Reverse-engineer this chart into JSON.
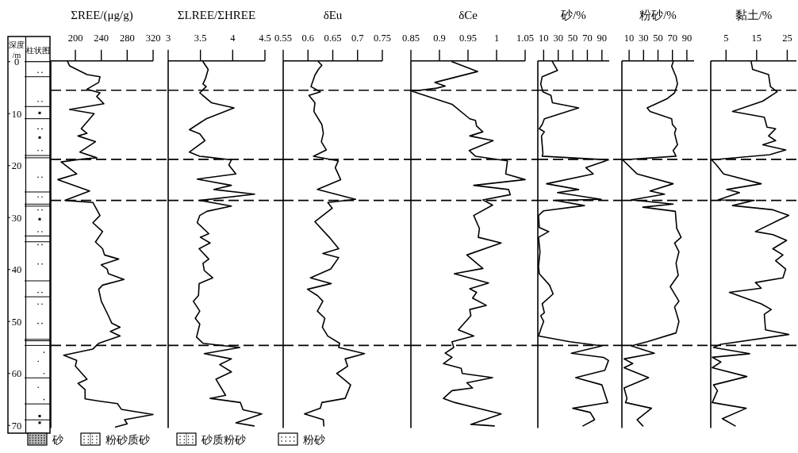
{
  "chart_data": [
    {
      "type": "line",
      "orientation": "horizontal",
      "title": "ΣREE/(μg/g)",
      "ylabel": "深度/m",
      "annotations": [
        "柱状图",
        "砂",
        "粉砂质砂",
        "砂质粉砂",
        "粉砂"
      ],
      "xlim": [
        162,
        320
      ],
      "xticks": [
        200,
        240,
        280,
        320
      ],
      "ylim": [
        70.5,
        0
      ],
      "yticks": [
        0,
        10,
        20,
        30,
        40,
        50,
        60,
        70
      ],
      "x": [
        0,
        0.8,
        2.5,
        2.9,
        4.0,
        5.3,
        6.0,
        6.7,
        8.1,
        9.2,
        10.0,
        12.9,
        13.8,
        14.3,
        15.4,
        17.4,
        18.5,
        18.7,
        19.3,
        21.6,
        22.7,
        24.9,
        26.7,
        27.1,
        29.6,
        31.0,
        32.7,
        34.7,
        36.0,
        37.2,
        38.0,
        39.1,
        39.9,
        40.8,
        41.9,
        43.0,
        43.8,
        46.1,
        48.9,
        50.3,
        51.1,
        51.9,
        52.8,
        54.2,
        55.3,
        56.5,
        57.5,
        58.6,
        61.1,
        61.9,
        63.1,
        64.9,
        65.3,
        65.8,
        66.9,
        67.9,
        68.9,
        69.7,
        70.3
      ],
      "series": [
        {
          "color": "#000000",
          "values": [
            188,
            191,
            218,
            238,
            236,
            218,
            238,
            233,
            244,
            191,
            229,
            209,
            218,
            204,
            231,
            207,
            233,
            213,
            178,
            202,
            173,
            222,
            184,
            227,
            238,
            227,
            242,
            231,
            242,
            245,
            267,
            240,
            249,
            251,
            275,
            242,
            236,
            240,
            251,
            256,
            269,
            254,
            269,
            236,
            227,
            182,
            202,
            200,
            218,
            204,
            215,
            215,
            236,
            265,
            271,
            320,
            276,
            280,
            262
          ]
        }
      ],
      "ref_lines": [
        {
          "axis": "y",
          "value": 5.5,
          "line_style": "dashed"
        },
        {
          "axis": "y",
          "value": 18.8,
          "line_style": "dashed"
        },
        {
          "axis": "y",
          "value": 26.7,
          "line_style": "dashed"
        },
        {
          "axis": "y",
          "value": 54.6,
          "line_style": "dashed"
        }
      ]
    },
    {
      "type": "line",
      "orientation": "horizontal",
      "title": "ΣLREE/ΣHREE",
      "xlim": [
        3,
        4.5
      ],
      "xticks": [
        3,
        3.5,
        4,
        4.5
      ],
      "ylim": [
        70.5,
        0
      ],
      "yticks": [
        0,
        10,
        20,
        30,
        40,
        50,
        60,
        70
      ],
      "tick_labels": "x",
      "x": [
        0,
        1.5,
        3.2,
        4.3,
        4.8,
        6.0,
        7.9,
        8.9,
        11.0,
        11.8,
        13.1,
        13.9,
        15.2,
        17.4,
        18.2,
        18.9,
        19.9,
        21.6,
        22.6,
        23.8,
        24.6,
        25.5,
        26.7,
        27.8,
        28.8,
        29.6,
        31.0,
        33.1,
        33.8,
        34.9,
        36.0,
        38.0,
        38.8,
        40.2,
        41.6,
        42.7,
        45.0,
        46.1,
        48.0,
        49.4,
        50.5,
        53.0,
        54.2,
        55.0,
        56.2,
        57.2,
        58.3,
        59.7,
        61.1,
        64.2,
        64.8,
        65.6,
        67.0,
        67.8,
        69.5,
        70.1
      ],
      "series": [
        {
          "color": "#000000",
          "values": [
            3.54,
            3.62,
            3.58,
            3.54,
            3.59,
            3.49,
            3.67,
            4.02,
            3.59,
            3.49,
            3.33,
            3.49,
            3.57,
            3.33,
            3.49,
            3.98,
            3.94,
            4.05,
            3.45,
            3.98,
            3.71,
            4.34,
            3.49,
            3.98,
            3.6,
            3.49,
            3.45,
            3.63,
            3.5,
            3.65,
            3.48,
            3.63,
            3.54,
            3.56,
            3.69,
            3.48,
            3.47,
            3.39,
            3.49,
            3.42,
            3.49,
            3.44,
            3.54,
            4.11,
            3.56,
            3.98,
            3.8,
            3.98,
            3.74,
            3.89,
            3.65,
            4.12,
            4.16,
            4.45,
            4.05,
            4.33
          ]
        }
      ],
      "ref_lines": [
        {
          "axis": "y",
          "value": 5.5,
          "line_style": "dashed"
        },
        {
          "axis": "y",
          "value": 18.8,
          "line_style": "dashed"
        },
        {
          "axis": "y",
          "value": 26.7,
          "line_style": "dashed"
        },
        {
          "axis": "y",
          "value": 54.6,
          "line_style": "dashed"
        }
      ]
    },
    {
      "type": "line",
      "orientation": "horizontal",
      "title": "δEu",
      "xlim": [
        0.55,
        0.75
      ],
      "xticks": [
        0.55,
        0.6,
        0.65,
        0.7,
        0.75
      ],
      "ylim": [
        70.5,
        0
      ],
      "yticks": [
        0,
        10,
        20,
        30,
        40,
        50,
        60,
        70
      ],
      "tick_labels": "x",
      "x": [
        0,
        0.7,
        1.5,
        2.6,
        4.8,
        5.8,
        6.5,
        7.9,
        9.6,
        12.1,
        13.8,
        15.4,
        17.0,
        18.2,
        19.1,
        20.4,
        22.7,
        24.6,
        26.5,
        27.1,
        28.2,
        30.8,
        33.8,
        36.0,
        36.9,
        37.7,
        39.9,
        41.6,
        42.7,
        43.8,
        45.0,
        46.1,
        48.0,
        49.4,
        51.1,
        52.8,
        54.2,
        55.0,
        56.2,
        57.2,
        58.6,
        60.0,
        62.2,
        64.8,
        65.6,
        66.7,
        67.8,
        68.9,
        70.1
      ],
      "series": [
        {
          "color": "#000000",
          "values": [
            0.621,
            0.628,
            0.621,
            0.614,
            0.606,
            0.625,
            0.602,
            0.614,
            0.612,
            0.628,
            0.631,
            0.627,
            0.637,
            0.611,
            0.661,
            0.655,
            0.666,
            0.619,
            0.696,
            0.64,
            0.649,
            0.614,
            0.643,
            0.662,
            0.63,
            0.662,
            0.646,
            0.605,
            0.647,
            0.599,
            0.619,
            0.63,
            0.619,
            0.634,
            0.629,
            0.64,
            0.664,
            0.662,
            0.714,
            0.675,
            0.68,
            0.658,
            0.686,
            0.675,
            0.628,
            0.625,
            0.593,
            0.631,
            0.632
          ]
        }
      ],
      "ref_lines": [
        {
          "axis": "y",
          "value": 5.5,
          "line_style": "dashed"
        },
        {
          "axis": "y",
          "value": 18.8,
          "line_style": "dashed"
        },
        {
          "axis": "y",
          "value": 26.7,
          "line_style": "dashed"
        },
        {
          "axis": "y",
          "value": 54.6,
          "line_style": "dashed"
        }
      ]
    },
    {
      "type": "line",
      "orientation": "horizontal",
      "title": "δCe",
      "xlim": [
        0.85,
        1.05
      ],
      "xticks": [
        0.85,
        0.9,
        0.95,
        1,
        1.05
      ],
      "ylim": [
        70.5,
        0
      ],
      "yticks": [
        0,
        10,
        20,
        30,
        40,
        50,
        60,
        70
      ],
      "tick_labels": "x",
      "x": [
        0,
        1.9,
        4.0,
        4.7,
        5.1,
        5.7,
        8.2,
        11.0,
        11.3,
        12.4,
        13.5,
        14.3,
        15.2,
        17.1,
        18.2,
        19.1,
        21.6,
        22.7,
        23.8,
        24.6,
        25.6,
        26.6,
        27.6,
        29.6,
        32.1,
        33.8,
        34.9,
        37.2,
        39.8,
        40.8,
        42.6,
        43.7,
        44.4,
        45.5,
        46.9,
        47.7,
        48.9,
        51.6,
        52.8,
        53.9,
        55.0,
        56.1,
        56.9,
        58.1,
        59.0,
        60.0,
        60.8,
        61.8,
        62.8,
        63.3,
        64.8,
        65.6,
        67.8,
        69.8,
        70.1
      ],
      "series": [
        {
          "color": "#000000",
          "values": [
            0.922,
            0.967,
            0.892,
            0.91,
            0.895,
            0.852,
            0.922,
            0.953,
            0.963,
            0.965,
            0.976,
            0.953,
            0.994,
            0.952,
            0.963,
            1.019,
            1.016,
            1.05,
            0.96,
            1.021,
            1.024,
            0.976,
            0.993,
            0.96,
            0.97,
            0.968,
            1.008,
            0.948,
            0.976,
            0.926,
            0.986,
            0.953,
            0.965,
            0.958,
            0.982,
            0.953,
            0.955,
            0.933,
            0.96,
            0.922,
            0.925,
            0.91,
            0.922,
            0.907,
            0.938,
            0.94,
            0.993,
            0.948,
            0.958,
            0.922,
            0.907,
            0.927,
            1.008,
            0.955,
            0.996
          ]
        }
      ],
      "ref_lines": [
        {
          "axis": "y",
          "value": 5.5,
          "line_style": "dashed"
        },
        {
          "axis": "y",
          "value": 18.8,
          "line_style": "dashed"
        },
        {
          "axis": "y",
          "value": 26.7,
          "line_style": "dashed"
        },
        {
          "axis": "y",
          "value": 54.6,
          "line_style": "dashed"
        }
      ]
    },
    {
      "type": "line",
      "orientation": "horizontal",
      "title": "砂/%",
      "xlim": [
        2,
        100
      ],
      "xticks": [
        10,
        30,
        50,
        70,
        90
      ],
      "ylim": [
        70.5,
        0
      ],
      "yticks": [
        0,
        10,
        20,
        30,
        40,
        50,
        60,
        70
      ],
      "tick_labels": "x",
      "x": [
        0,
        1.7,
        2.9,
        4.3,
        5.8,
        6.5,
        7.9,
        8.9,
        11.0,
        12.1,
        12.9,
        13.5,
        14.3,
        17.7,
        18.2,
        18.9,
        20.4,
        21.6,
        23.5,
        24.6,
        25.2,
        26.5,
        26.7,
        27.7,
        28.7,
        29.6,
        31.9,
        32.7,
        33.8,
        36.6,
        39.4,
        40.8,
        43.0,
        44.7,
        46.6,
        48.3,
        48.9,
        50.0,
        51.1,
        52.8,
        53.9,
        54.7,
        56.1,
        56.9,
        57.5,
        59.4,
        60.8,
        62.2,
        65.6,
        66.7,
        67.5,
        68.9,
        70.1
      ],
      "series": [
        {
          "color": "#000000",
          "values": [
            22,
            29,
            8,
            6,
            9,
            20,
            22,
            58,
            11,
            8,
            4,
            11,
            7,
            9,
            8,
            99,
            68,
            78,
            14,
            58,
            29,
            89,
            26,
            66,
            10,
            3,
            4,
            17,
            3,
            5,
            3,
            4,
            18,
            23,
            8,
            11,
            6,
            10,
            7,
            3,
            46,
            90,
            48,
            92,
            99,
            94,
            54,
            90,
            98,
            50,
            74,
            80,
            64
          ]
        }
      ],
      "ref_lines": [
        {
          "axis": "y",
          "value": 5.5,
          "line_style": "dashed"
        },
        {
          "axis": "y",
          "value": 18.8,
          "line_style": "dashed"
        },
        {
          "axis": "y",
          "value": 26.7,
          "line_style": "dashed"
        },
        {
          "axis": "y",
          "value": 54.6,
          "line_style": "dashed"
        }
      ]
    },
    {
      "type": "line",
      "orientation": "horizontal",
      "title": "粉砂/%",
      "xlim": [
        0,
        100
      ],
      "xticks": [
        10,
        30,
        50,
        70,
        90
      ],
      "ylim": [
        70.5,
        0
      ],
      "yticks": [
        0,
        10,
        20,
        30,
        40,
        50,
        60,
        70
      ],
      "tick_labels": "x",
      "x": [
        0,
        0.9,
        2.9,
        4.3,
        6.0,
        7.1,
        8.9,
        9.6,
        11.0,
        12.1,
        12.9,
        13.8,
        16.0,
        17.1,
        18.2,
        18.9,
        21.6,
        23.5,
        24.9,
        25.5,
        26.6,
        27.4,
        28.0,
        28.8,
        32.1,
        33.8,
        34.9,
        36.6,
        38.8,
        41.1,
        43.3,
        46.1,
        47.2,
        50.0,
        52.2,
        53.9,
        54.7,
        56.1,
        57.2,
        58.1,
        58.9,
        60.8,
        62.8,
        64.8,
        65.6,
        66.7,
        68.9,
        70.1
      ],
      "series": [
        {
          "color": "#000000",
          "values": [
            71,
            69,
            75,
            77,
            73,
            63,
            35,
            39,
            69,
            70,
            75,
            73,
            77,
            71,
            75,
            1,
            21,
            71,
            39,
            59,
            13,
            71,
            29,
            74,
            76,
            82,
            73,
            79,
            75,
            78,
            67,
            79,
            73,
            79,
            75,
            35,
            13,
            45,
            3,
            15,
            3,
            37,
            3,
            7,
            5,
            41,
            21,
            29
          ]
        }
      ],
      "ref_lines": [
        {
          "axis": "y",
          "value": 5.5,
          "line_style": "dashed"
        },
        {
          "axis": "y",
          "value": 18.8,
          "line_style": "dashed"
        },
        {
          "axis": "y",
          "value": 26.7,
          "line_style": "dashed"
        },
        {
          "axis": "y",
          "value": 54.6,
          "line_style": "dashed"
        }
      ]
    },
    {
      "type": "line",
      "orientation": "horizontal",
      "title": "黏土/%",
      "xlim": [
        0,
        28
      ],
      "xticks": [
        5,
        15,
        25
      ],
      "ylim": [
        70.5,
        0
      ],
      "yticks": [
        0,
        10,
        20,
        30,
        40,
        50,
        60,
        70
      ],
      "tick_labels": "x",
      "x": [
        0,
        1.5,
        2.5,
        4.8,
        5.8,
        7.6,
        9.6,
        10.7,
        12.6,
        12.9,
        14.3,
        15.2,
        16.0,
        17.0,
        17.9,
        18.9,
        19.9,
        21.6,
        23.5,
        24.6,
        25.2,
        26.6,
        26.7,
        27.7,
        28.5,
        29.6,
        30.5,
        32.7,
        33.3,
        34.4,
        36.0,
        37.2,
        38.3,
        39.9,
        41.6,
        42.5,
        43.6,
        44.4,
        46.6,
        47.7,
        48.6,
        51.6,
        52.5,
        54.4,
        55.0,
        56.2,
        56.9,
        57.8,
        58.9,
        60.6,
        62.2,
        63.3,
        65.6,
        66.7,
        68.7,
        70.1
      ],
      "series": [
        {
          "color": "#000000",
          "values": [
            13.2,
            13.7,
            18.9,
            19.5,
            21.7,
            17,
            7.1,
            17.5,
            18.4,
            21.2,
            18.9,
            21.2,
            17,
            24.5,
            19.3,
            0.3,
            1.9,
            4.2,
            16.5,
            5.2,
            9.4,
            2.4,
            14.2,
            7.1,
            20.3,
            25.5,
            22.2,
            14.6,
            20.3,
            24.8,
            20.3,
            23.6,
            21.2,
            24.5,
            23.6,
            14.6,
            16.5,
            6.1,
            16.5,
            19.8,
            17.5,
            17.9,
            25.5,
            3.3,
            0.9,
            12.7,
            0.5,
            3.3,
            0.5,
            11.8,
            0.9,
            2.2,
            0.5,
            11.6,
            3.8,
            8
          ]
        }
      ],
      "ref_lines": [
        {
          "axis": "y",
          "value": 5.5,
          "line_style": "dashed"
        },
        {
          "axis": "y",
          "value": 18.8,
          "line_style": "dashed"
        },
        {
          "axis": "y",
          "value": 26.7,
          "line_style": "dashed"
        },
        {
          "axis": "y",
          "value": 54.6,
          "line_style": "dashed"
        }
      ]
    }
  ]
}
